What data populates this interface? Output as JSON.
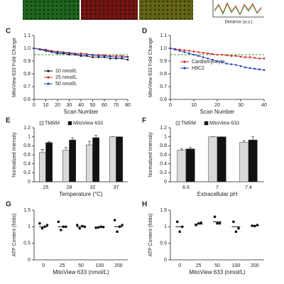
{
  "header_strip": {
    "x_label": "Distance (a.u.)"
  },
  "chart_data": [
    {
      "type": "line",
      "panel": "C",
      "x_label": "Scan Number",
      "y_label": "MitoView 633 Fold Change",
      "x": [
        0,
        5,
        10,
        15,
        20,
        25,
        30,
        35,
        40,
        45,
        50,
        55,
        60,
        65,
        70,
        75,
        80
      ],
      "xlim": [
        0,
        80
      ],
      "xticks": [
        0,
        10,
        20,
        30,
        40,
        50,
        60,
        70,
        80
      ],
      "ylim": [
        0.6,
        1.1
      ],
      "yticks": [
        0.6,
        0.7,
        0.8,
        0.9,
        {
          "value": 1,
          "label": "1.0"
        },
        1.1
      ],
      "reference_line": {
        "value": 0.95,
        "color": "#2ca02c"
      },
      "legend": "lower left",
      "series": [
        {
          "name": "10 nmol/L",
          "color": "#111111",
          "values": [
            1.0,
            0.99,
            0.98,
            0.97,
            0.96,
            0.96,
            0.95,
            0.95,
            0.94,
            0.94,
            0.93,
            0.93,
            0.93,
            0.92,
            0.92,
            0.92,
            0.91
          ]
        },
        {
          "name": "25 nmol/L",
          "color": "#d62728",
          "values": [
            1.0,
            0.995,
            0.99,
            0.98,
            0.975,
            0.97,
            0.965,
            0.96,
            0.96,
            0.955,
            0.95,
            0.95,
            0.945,
            0.94,
            0.94,
            0.94,
            0.935
          ]
        },
        {
          "name": "50 nmol/L",
          "color": "#1f3fbf",
          "values": [
            1.0,
            0.99,
            0.985,
            0.975,
            0.97,
            0.965,
            0.96,
            0.955,
            0.95,
            0.95,
            0.945,
            0.94,
            0.94,
            0.935,
            0.93,
            0.93,
            0.93
          ]
        }
      ]
    },
    {
      "type": "line",
      "panel": "D",
      "x_label": "Scan Number",
      "y_label": "MitoView 633 Fold Change",
      "x": [
        0,
        2,
        4,
        6,
        8,
        10,
        12,
        14,
        16,
        18,
        20,
        22,
        24,
        26,
        28,
        30,
        32,
        34,
        36,
        38,
        40
      ],
      "xlim": [
        0,
        40
      ],
      "xticks": [
        0,
        10,
        20,
        30,
        40
      ],
      "ylim": [
        0.6,
        1.1
      ],
      "yticks": [
        0.6,
        0.7,
        0.8,
        0.9,
        {
          "value": 1,
          "label": "1.0"
        },
        1.1
      ],
      "reference_line": {
        "value": 0.95,
        "color": "#2ca02c"
      },
      "legend": "center left",
      "series": [
        {
          "name": "Cardiomyocyte",
          "color": "#d62728",
          "values": [
            1.0,
            0.995,
            0.99,
            0.985,
            0.98,
            0.975,
            0.97,
            0.965,
            0.96,
            0.955,
            0.95,
            0.95,
            0.945,
            0.94,
            0.94,
            0.935,
            0.93,
            0.93,
            0.925,
            0.92,
            0.92
          ]
        },
        {
          "name": "H9C2",
          "color": "#1f3fbf",
          "values": [
            1.0,
            0.99,
            0.98,
            0.97,
            0.96,
            0.95,
            0.94,
            0.93,
            0.92,
            0.91,
            0.9,
            0.89,
            0.88,
            0.875,
            0.87,
            0.86,
            0.85,
            0.845,
            0.84,
            0.835,
            0.83
          ]
        }
      ]
    },
    {
      "type": "bar",
      "panel": "E",
      "x_label": "Temperature (°C)",
      "y_label": "Normalized Intensity",
      "categories": [
        "25",
        "28",
        "32",
        "37"
      ],
      "ylim": [
        0,
        1.2
      ],
      "yticks": [
        0,
        0.2,
        0.4,
        0.6,
        0.8,
        1,
        1.2
      ],
      "legend": "top",
      "series": [
        {
          "name": "TMRM",
          "color": "#d9d9d9",
          "values": [
            0.65,
            0.7,
            0.82,
            1.0
          ],
          "errors": [
            0.07,
            0.06,
            0.08,
            0.0
          ]
        },
        {
          "name": "MitoView 633",
          "color": "#111111",
          "values": [
            0.87,
            0.93,
            0.98,
            1.0
          ],
          "errors": [
            0.02,
            0.05,
            0.05,
            0.0
          ]
        }
      ]
    },
    {
      "type": "bar",
      "panel": "F",
      "x_label": "Extracellular pH",
      "y_label": "Normalized Intensity",
      "categories": [
        "6.6",
        "7",
        "7.4"
      ],
      "ylim": [
        0,
        1.2
      ],
      "yticks": [
        0,
        0.2,
        0.4,
        0.6,
        0.8,
        1,
        1.2
      ],
      "legend": "top",
      "series": [
        {
          "name": "TMRM",
          "color": "#d9d9d9",
          "values": [
            0.7,
            1.0,
            0.88
          ],
          "errors": [
            0.03,
            0.0,
            0.03
          ]
        },
        {
          "name": "MitoView 633",
          "color": "#111111",
          "values": [
            0.73,
            1.0,
            0.93
          ],
          "errors": [
            0.03,
            0.0,
            0.07
          ]
        }
      ]
    },
    {
      "type": "dot",
      "panel": "G",
      "x_label": "MitoView 633 (nmol/L)",
      "y_label": "ATP Content (folds)",
      "categories": [
        "0",
        "25",
        "50",
        "100",
        "200"
      ],
      "ylim": [
        0,
        1.5
      ],
      "yticks": [
        0,
        0.5,
        1,
        1.5
      ],
      "values": [
        1.0,
        1.0,
        1.0,
        0.98,
        1.0
      ],
      "points": [
        [
          1.1,
          0.95,
          1.0,
          1.05
        ],
        [
          1.15,
          0.9,
          1.0,
          1.0
        ],
        [
          1.05,
          0.95,
          1.02,
          1.0
        ],
        [
          0.97,
          0.98,
          1.0,
          0.99
        ],
        [
          1.2,
          0.85,
          1.0,
          1.05
        ]
      ],
      "color": "#111111"
    },
    {
      "type": "dot",
      "panel": "H",
      "x_label": "MitoView 633 (nmol/L)",
      "y_label": "ATP Content (folds)",
      "categories": [
        "0",
        "25",
        "50",
        "100",
        "200"
      ],
      "ylim": [
        0,
        1.5
      ],
      "yticks": [
        0,
        0.5,
        1,
        1.5
      ],
      "values": [
        1.0,
        1.08,
        1.15,
        1.0,
        1.03
      ],
      "points": [
        [
          1.15,
          0.85,
          1.0
        ],
        [
          1.05,
          1.1,
          1.12
        ],
        [
          1.3,
          1.1,
          1.1
        ],
        [
          1.15,
          0.85,
          0.95
        ],
        [
          1.03,
          1.02,
          1.05
        ]
      ],
      "color": "#111111"
    }
  ]
}
